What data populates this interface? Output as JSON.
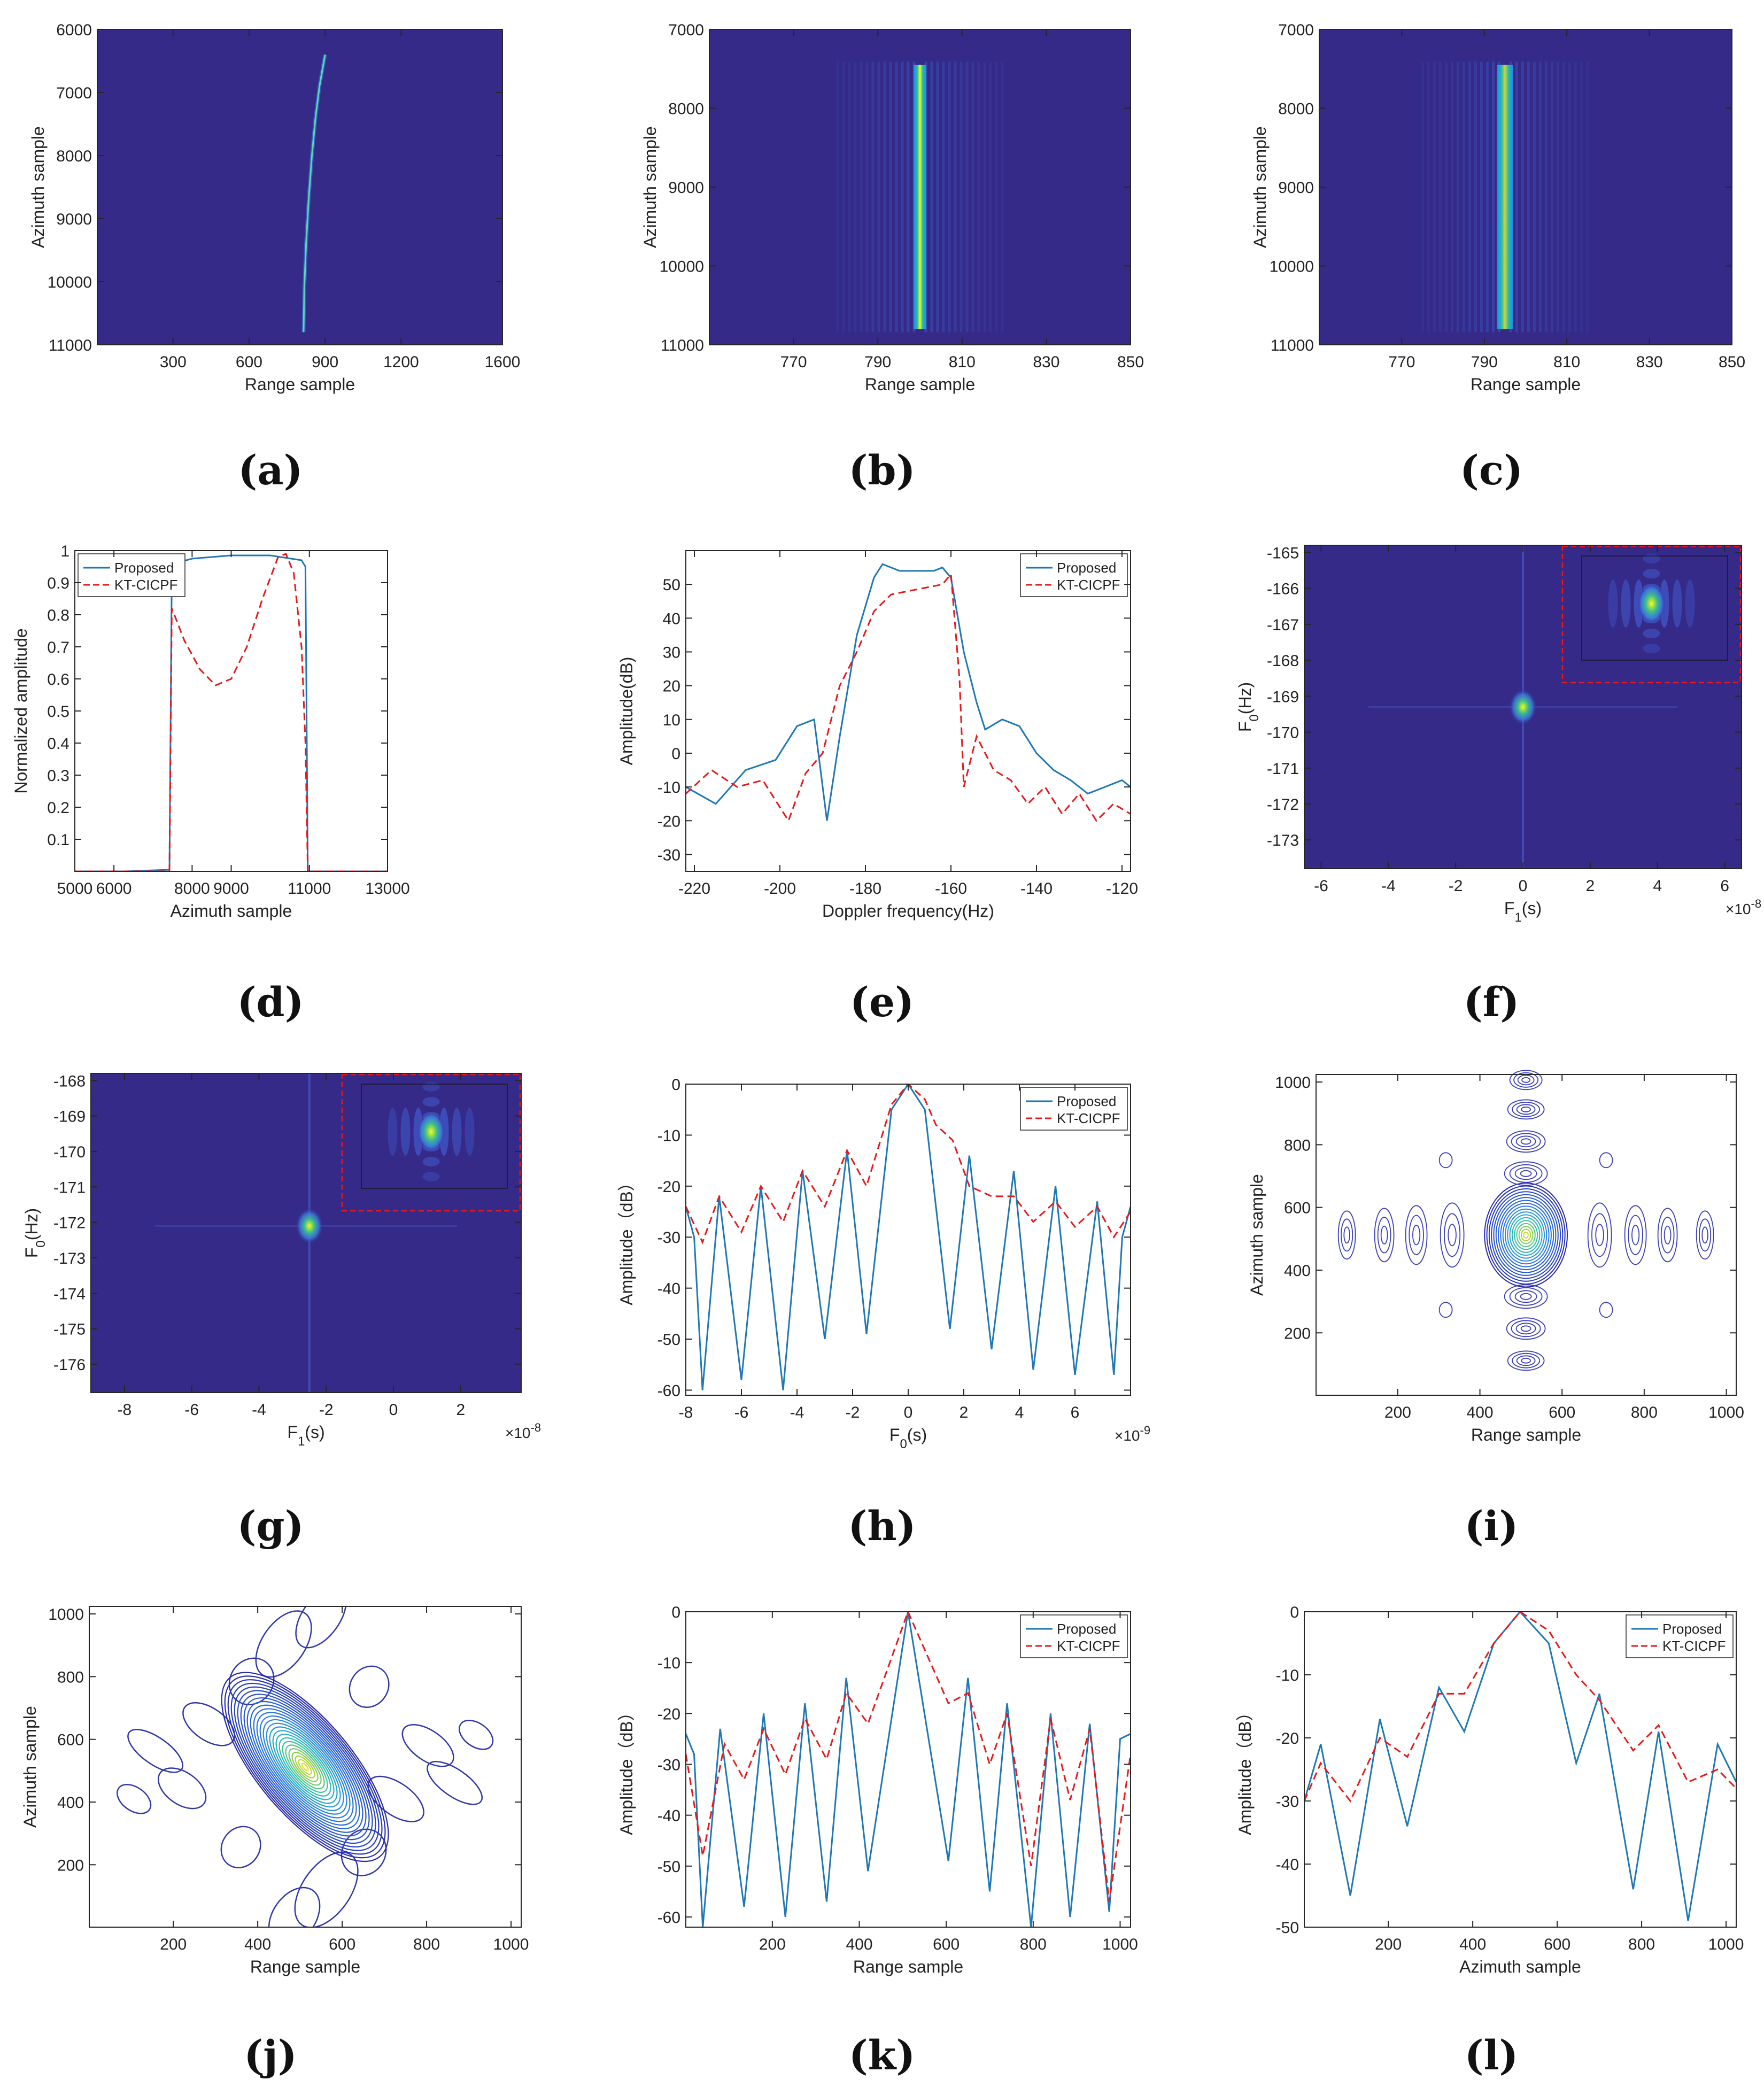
{
  "figure": {
    "captions": [
      "(a)",
      "(b)",
      "(c)",
      "(d)",
      "(e)",
      "(f)",
      "(g)",
      "(h)",
      "(i)",
      "(j)",
      "(k)",
      "(l)"
    ],
    "colors": {
      "proposed": "#1f77b4",
      "kt": "#e41a1c",
      "parula_bg": "#352a87",
      "parula_yellow": "#f9fb0e"
    }
  },
  "chart_data": [
    {
      "id": "a",
      "type": "heatmap",
      "xlabel": "Range sample",
      "ylabel": "Azimuth sample",
      "xlim": [
        1,
        1600
      ],
      "ylim": [
        6000,
        11000
      ],
      "y_reversed": true,
      "xticks": [
        300,
        600,
        900,
        1200,
        1600
      ],
      "xtick_labels": [
        "300",
        "600",
        "900",
        "1200",
        "1600"
      ],
      "yticks": [
        6000,
        7000,
        8000,
        9000,
        10000,
        11000
      ],
      "ytick_labels": [
        "6000",
        "7000",
        "8000",
        "9000",
        "10000",
        "11000"
      ],
      "trajectory": {
        "x": [
          815,
          818,
          825,
          835,
          848,
          862,
          878,
          900
        ],
        "y": [
          10800,
          10100,
          9400,
          8700,
          8000,
          7400,
          6900,
          6400
        ]
      }
    },
    {
      "id": "b",
      "type": "heatmap",
      "xlabel": "Range sample",
      "ylabel": "Azimuth sample",
      "xlim": [
        750,
        850
      ],
      "ylim": [
        7000,
        11000
      ],
      "y_reversed": true,
      "xticks": [
        770,
        790,
        810,
        830,
        850
      ],
      "xtick_labels": [
        "770",
        "790",
        "810",
        "830",
        "850"
      ],
      "yticks": [
        7000,
        8000,
        9000,
        10000,
        11000
      ],
      "ytick_labels": [
        "7000",
        "8000",
        "9000",
        "10000",
        "11000"
      ],
      "line": {
        "x": 800,
        "y_start": 7450,
        "y_end": 10800
      }
    },
    {
      "id": "c",
      "type": "heatmap",
      "xlabel": "Range sample",
      "ylabel": "Azimuth sample",
      "xlim": [
        750,
        850
      ],
      "ylim": [
        7000,
        11000
      ],
      "y_reversed": true,
      "xticks": [
        770,
        790,
        810,
        830,
        850
      ],
      "xtick_labels": [
        "770",
        "790",
        "810",
        "830",
        "850"
      ],
      "yticks": [
        7000,
        8000,
        9000,
        10000,
        11000
      ],
      "ytick_labels": [
        "7000",
        "8000",
        "9000",
        "10000",
        "11000"
      ],
      "line": {
        "x": 795,
        "y_start": 7450,
        "y_end": 10800
      }
    },
    {
      "id": "d",
      "type": "line",
      "xlabel": "Azimuth sample",
      "ylabel": "Normalized amplitude",
      "xlim": [
        5000,
        13000
      ],
      "ylim": [
        0,
        1
      ],
      "xticks": [
        5000,
        6000,
        8000,
        9000,
        11000,
        13000
      ],
      "xtick_labels": [
        "5000",
        "6000",
        "8000",
        "9000",
        "11000",
        "13000"
      ],
      "yticks": [
        0.1,
        0.2,
        0.3,
        0.4,
        0.5,
        0.6,
        0.7,
        0.8,
        0.9,
        1
      ],
      "ytick_labels": [
        "0.1",
        "0.2",
        "0.3",
        "0.4",
        "0.5",
        "0.6",
        "0.7",
        "0.8",
        "0.9",
        "1"
      ],
      "legend": [
        "Proposed",
        "KT-CICPF"
      ],
      "legend_position": "top-left",
      "series": [
        {
          "name": "Proposed",
          "style": "solid",
          "x": [
            5000,
            6300,
            7420,
            7480,
            7550,
            8000,
            9000,
            10000,
            10800,
            10900,
            10960,
            12000,
            13000
          ],
          "y": [
            0,
            0,
            0.005,
            0.93,
            0.96,
            0.975,
            0.985,
            0.985,
            0.97,
            0.95,
            0.0,
            0,
            0
          ]
        },
        {
          "name": "KT-CICPF",
          "style": "dashed",
          "x": [
            5000,
            7420,
            7480,
            7800,
            8200,
            8600,
            9000,
            9400,
            9800,
            10200,
            10400,
            10600,
            10800,
            10900,
            10960,
            13000
          ],
          "y": [
            0,
            0,
            0.82,
            0.72,
            0.63,
            0.58,
            0.6,
            0.7,
            0.85,
            0.98,
            0.99,
            0.93,
            0.7,
            0.4,
            0,
            0
          ]
        }
      ]
    },
    {
      "id": "e",
      "type": "line",
      "xlabel": "Doppler frequency(Hz)",
      "ylabel": "Amplitude(dB)",
      "xlim": [
        -222,
        -118
      ],
      "ylim": [
        -35,
        60
      ],
      "xticks": [
        -220,
        -200,
        -180,
        -160,
        -140,
        -120
      ],
      "xtick_labels": [
        "-220",
        "-200",
        "-180",
        "-160",
        "-140",
        "-120"
      ],
      "yticks": [
        -30,
        -20,
        -10,
        0,
        10,
        20,
        30,
        40,
        50
      ],
      "ytick_labels": [
        "-30",
        "-20",
        "-10",
        "0",
        "10",
        "20",
        "30",
        "40",
        "50"
      ],
      "legend": [
        "Proposed",
        "KT-CICPF"
      ],
      "legend_position": "top-right",
      "series": [
        {
          "name": "Proposed",
          "style": "solid",
          "x": [
            -222,
            -215,
            -208,
            -201,
            -196,
            -192,
            -189,
            -186,
            -182,
            -178,
            -176,
            -172,
            -168,
            -164,
            -162,
            -160,
            -157,
            -154,
            -152,
            -148,
            -144,
            -140,
            -136,
            -132,
            -128,
            -124,
            -120,
            -118
          ],
          "y": [
            -10,
            -15,
            -5,
            -2,
            8,
            10,
            -20,
            5,
            35,
            52,
            56,
            54,
            54,
            54,
            55,
            52,
            30,
            15,
            7,
            10,
            8,
            0,
            -5,
            -8,
            -12,
            -10,
            -8,
            -10
          ]
        },
        {
          "name": "KT-CICPF",
          "style": "dashed",
          "x": [
            -222,
            -216,
            -210,
            -204,
            -198,
            -194,
            -190,
            -186,
            -182,
            -178,
            -174,
            -170,
            -166,
            -162,
            -160,
            -158,
            -157,
            -154,
            -150,
            -146,
            -142,
            -138,
            -134,
            -130,
            -126,
            -122,
            -118
          ],
          "y": [
            -12,
            -5,
            -10,
            -8,
            -20,
            -6,
            0,
            20,
            30,
            42,
            47,
            48,
            49,
            50,
            53,
            22,
            -10,
            5,
            -5,
            -8,
            -15,
            -10,
            -18,
            -12,
            -20,
            -15,
            -18
          ]
        }
      ]
    },
    {
      "id": "f",
      "type": "heatmap",
      "xlabel": "F1(s)",
      "ylabel": "F0(Hz)",
      "xlim": [
        -6.5,
        6.5
      ],
      "ylim": [
        -173.8,
        -164.8
      ],
      "y_reversed": false,
      "x_multiplier": "×10^-8",
      "xticks": [
        -6,
        -4,
        -2,
        0,
        2,
        4,
        6
      ],
      "xtick_labels": [
        "-6",
        "-4",
        "-2",
        "0",
        "2",
        "4",
        "6"
      ],
      "yticks": [
        -173,
        -172,
        -171,
        -170,
        -169,
        -168,
        -167,
        -166,
        -165
      ],
      "ytick_labels": [
        "-173",
        "-172",
        "-171",
        "-170",
        "-169",
        "-168",
        "-167",
        "-166",
        "-165"
      ],
      "peak": {
        "x": 0,
        "y": -169.3
      }
    },
    {
      "id": "g",
      "type": "heatmap",
      "xlabel": "F1(s)",
      "ylabel": "F0(Hz)",
      "xlim": [
        -9,
        3.8
      ],
      "ylim": [
        -176.8,
        -167.8
      ],
      "y_reversed": false,
      "x_multiplier": "×10^-8",
      "xticks": [
        -8,
        -6,
        -4,
        -2,
        0,
        2
      ],
      "xtick_labels": [
        "-8",
        "-6",
        "-4",
        "-2",
        "0",
        "2"
      ],
      "yticks": [
        -176,
        -175,
        -174,
        -173,
        -172,
        -171,
        -170,
        -169,
        -168
      ],
      "ytick_labels": [
        "-176",
        "-175",
        "-174",
        "-173",
        "-172",
        "-171",
        "-170",
        "-169",
        "-168"
      ],
      "peak": {
        "x": -2.5,
        "y": -172.1
      }
    },
    {
      "id": "h",
      "type": "line",
      "xlabel": "F0(s)",
      "ylabel": "Amplitude（dB）",
      "xlim": [
        -8,
        8
      ],
      "ylim": [
        -61,
        0
      ],
      "x_multiplier": "×10^-9",
      "xticks": [
        -8,
        -6,
        -4,
        -2,
        0,
        2,
        4,
        6
      ],
      "xtick_labels": [
        "-8",
        "-6",
        "-4",
        "-2",
        "0",
        "2",
        "4",
        "6"
      ],
      "yticks": [
        -60,
        -50,
        -40,
        -30,
        -20,
        -10,
        0
      ],
      "ytick_labels": [
        "-60",
        "-50",
        "-40",
        "-30",
        "-20",
        "-10",
        "0"
      ],
      "legend": [
        "Proposed",
        "KT-CICPF"
      ],
      "legend_position": "top-right",
      "series": [
        {
          "name": "Proposed",
          "style": "solid",
          "x": [
            -8,
            -7.7,
            -7.4,
            -6.8,
            -6.0,
            -5.3,
            -4.5,
            -3.8,
            -3.0,
            -2.2,
            -1.5,
            -0.6,
            0,
            0.6,
            1.5,
            2.2,
            3.0,
            3.8,
            4.5,
            5.3,
            6.0,
            6.8,
            7.4,
            7.7,
            8
          ],
          "y": [
            -24,
            -30,
            -60,
            -22,
            -58,
            -20,
            -60,
            -17,
            -50,
            -13,
            -49,
            -5,
            0,
            -5,
            -48,
            -14,
            -52,
            -17,
            -56,
            -20,
            -57,
            -23,
            -57,
            -30,
            -24
          ]
        },
        {
          "name": "KT-CICPF",
          "style": "dashed",
          "x": [
            -8,
            -7.4,
            -6.8,
            -6.0,
            -5.3,
            -4.5,
            -3.8,
            -3.0,
            -2.2,
            -1.5,
            -0.6,
            0,
            0.6,
            1.0,
            1.6,
            2.2,
            3.0,
            3.8,
            4.5,
            5.3,
            6.0,
            6.8,
            7.4,
            8
          ],
          "y": [
            -24,
            -31,
            -22,
            -29,
            -20,
            -27,
            -17,
            -24,
            -13,
            -20,
            -4,
            0,
            -3,
            -8,
            -11,
            -20,
            -22,
            -22,
            -27,
            -23,
            -28,
            -24,
            -30,
            -25
          ]
        }
      ]
    },
    {
      "id": "i",
      "type": "contour",
      "xlabel": "Range sample",
      "ylabel": "Azimuth sample",
      "xlim": [
        1,
        1024
      ],
      "ylim": [
        1,
        1024
      ],
      "xticks": [
        200,
        400,
        600,
        800,
        1000
      ],
      "xtick_labels": [
        "200",
        "400",
        "600",
        "800",
        "1000"
      ],
      "yticks": [
        200,
        400,
        600,
        800,
        1000
      ],
      "ytick_labels": [
        "200",
        "400",
        "600",
        "800",
        "1000"
      ],
      "center": [
        512,
        512
      ]
    },
    {
      "id": "j",
      "type": "contour",
      "xlabel": "Range sample",
      "ylabel": "Azimuth sample",
      "xlim": [
        1,
        1024
      ],
      "ylim": [
        1,
        1024
      ],
      "xticks": [
        200,
        400,
        600,
        800,
        1000
      ],
      "xtick_labels": [
        "200",
        "400",
        "600",
        "800",
        "1000"
      ],
      "yticks": [
        200,
        400,
        600,
        800,
        1000
      ],
      "ytick_labels": [
        "200",
        "400",
        "600",
        "800",
        "1000"
      ],
      "center": [
        512,
        512
      ]
    },
    {
      "id": "k",
      "type": "line",
      "xlabel": "Range sample",
      "ylabel": "Amplitude（dB）",
      "xlim": [
        1,
        1024
      ],
      "ylim": [
        -62,
        0
      ],
      "xticks": [
        200,
        400,
        600,
        800,
        1000
      ],
      "xtick_labels": [
        "200",
        "400",
        "600",
        "800",
        "1000"
      ],
      "yticks": [
        -60,
        -50,
        -40,
        -30,
        -20,
        -10,
        0
      ],
      "ytick_labels": [
        "-60",
        "-50",
        "-40",
        "-30",
        "-20",
        "-10",
        "0"
      ],
      "legend": [
        "Proposed",
        "KT-CICPF"
      ],
      "legend_position": "top-right",
      "series": [
        {
          "name": "Proposed",
          "style": "solid",
          "x": [
            1,
            20,
            40,
            80,
            135,
            180,
            230,
            275,
            325,
            370,
            420,
            512,
            605,
            650,
            700,
            740,
            795,
            840,
            885,
            930,
            975,
            1000,
            1024
          ],
          "y": [
            -24,
            -28,
            -62,
            -23,
            -58,
            -20,
            -60,
            -18,
            -57,
            -13,
            -51,
            0,
            -49,
            -13,
            -55,
            -18,
            -62,
            -20,
            -60,
            -22,
            -59,
            -25,
            -24
          ]
        },
        {
          "name": "KT-CICPF",
          "style": "dashed",
          "x": [
            1,
            40,
            90,
            135,
            180,
            230,
            275,
            325,
            370,
            420,
            512,
            605,
            650,
            700,
            740,
            795,
            840,
            885,
            930,
            975,
            1024
          ],
          "y": [
            -28,
            -48,
            -26,
            -33,
            -23,
            -32,
            -21,
            -29,
            -16,
            -22,
            0,
            -18,
            -16,
            -30,
            -20,
            -50,
            -21,
            -37,
            -23,
            -57,
            -28
          ]
        }
      ]
    },
    {
      "id": "l",
      "type": "line",
      "xlabel": "Azimuth sample",
      "ylabel": "Amplitude（dB）",
      "xlim": [
        1,
        1024
      ],
      "ylim": [
        -50,
        0
      ],
      "xticks": [
        200,
        400,
        600,
        800,
        1000
      ],
      "xtick_labels": [
        "200",
        "400",
        "600",
        "800",
        "1000"
      ],
      "yticks": [
        -50,
        -40,
        -30,
        -20,
        -10,
        0
      ],
      "ytick_labels": [
        "-50",
        "-40",
        "-30",
        "-20",
        "-10",
        "0"
      ],
      "legend": [
        "Proposed",
        "KT-CICPF"
      ],
      "legend_position": "top-right",
      "series": [
        {
          "name": "Proposed",
          "style": "solid",
          "x": [
            1,
            40,
            110,
            180,
            245,
            320,
            380,
            450,
            512,
            580,
            645,
            700,
            780,
            840,
            910,
            980,
            1024
          ],
          "y": [
            -30,
            -21,
            -45,
            -17,
            -34,
            -12,
            -19,
            -5,
            0,
            -5,
            -24,
            -13,
            -44,
            -19,
            -49,
            -21,
            -27
          ]
        },
        {
          "name": "KT-CICPF",
          "style": "dashed",
          "x": [
            1,
            40,
            110,
            180,
            245,
            320,
            380,
            450,
            512,
            580,
            645,
            700,
            780,
            840,
            910,
            980,
            1024
          ],
          "y": [
            -30,
            -24,
            -30,
            -20,
            -23,
            -13,
            -13,
            -5,
            0,
            -3,
            -10,
            -14,
            -22,
            -18,
            -27,
            -25,
            -28
          ]
        }
      ]
    }
  ]
}
